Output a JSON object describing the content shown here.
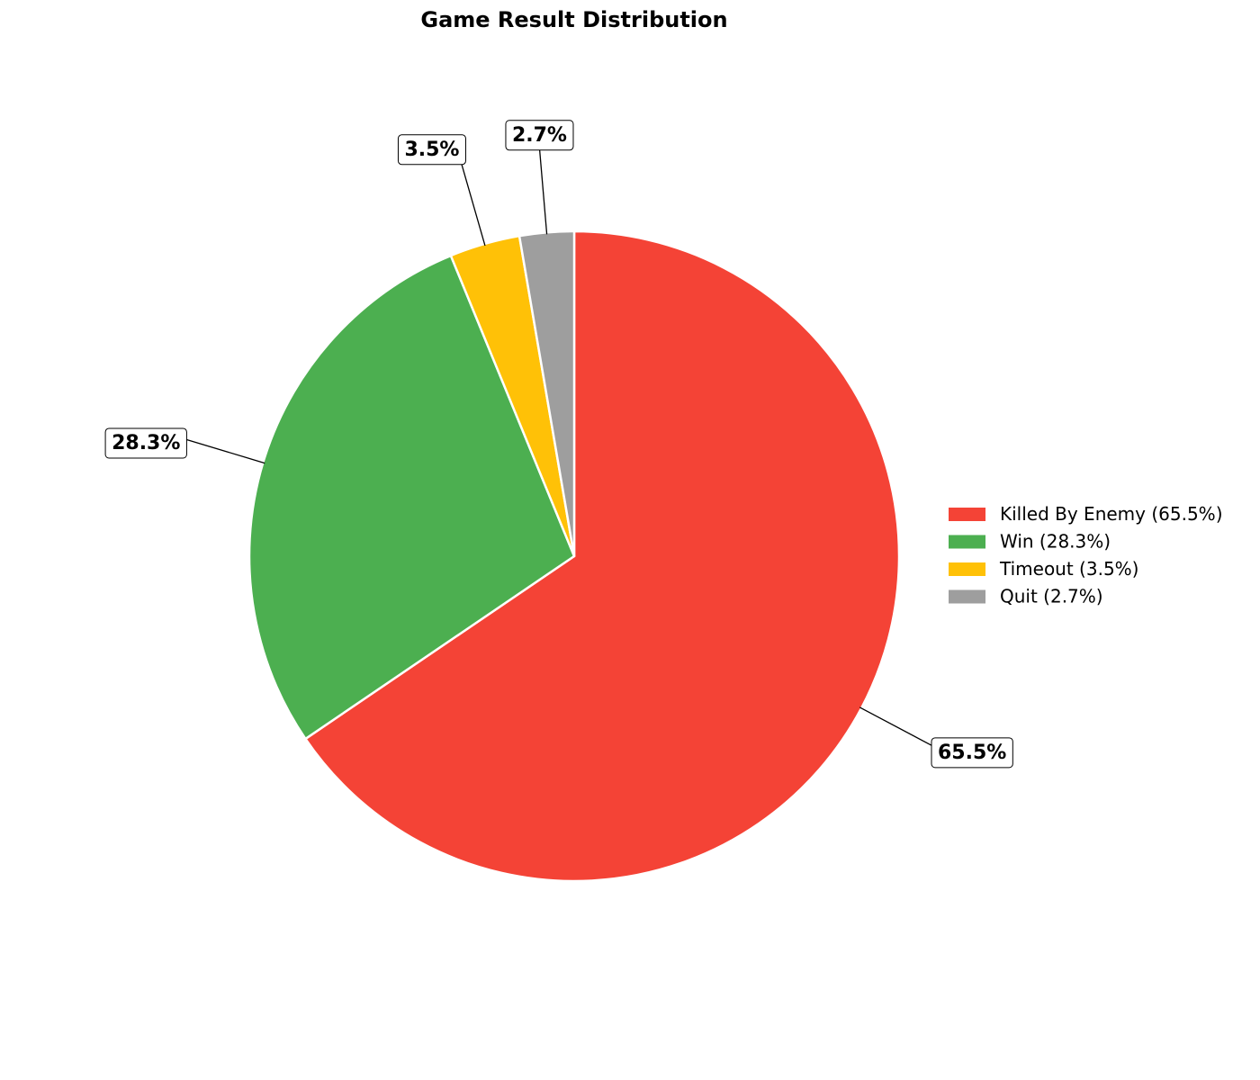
{
  "chart_data": {
    "type": "pie",
    "title": "Game Result Distribution",
    "start_angle_deg": 90,
    "direction": "clockwise",
    "slices": [
      {
        "label": "Killed By Enemy",
        "value": 65.5,
        "pct_label": "65.5%",
        "legend_label": "Killed By Enemy (65.5%)",
        "color": "#F44336"
      },
      {
        "label": "Win",
        "value": 28.3,
        "pct_label": "28.3%",
        "legend_label": "Win (28.3%)",
        "color": "#4CAF50"
      },
      {
        "label": "Timeout",
        "value": 3.5,
        "pct_label": "3.5%",
        "legend_label": "Timeout (3.5%)",
        "color": "#FFC107"
      },
      {
        "label": "Quit",
        "value": 2.7,
        "pct_label": "2.7%",
        "legend_label": "Quit (2.7%)",
        "color": "#9E9E9E"
      }
    ],
    "legend_position": "right",
    "edge_color": "#ffffff"
  }
}
